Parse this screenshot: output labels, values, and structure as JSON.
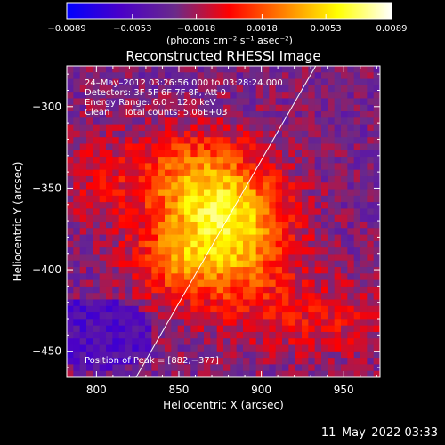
{
  "chart_data": {
    "type": "heatmap",
    "title": "Reconstructed RHESSI Image",
    "xlabel": "Heliocentric X (arcsec)",
    "ylabel": "Heliocentric Y (arcsec)",
    "xlim": [
      782,
      972
    ],
    "ylim": [
      -466,
      -275
    ],
    "x_ticks": [
      {
        "value": 800,
        "label": "800"
      },
      {
        "value": 850,
        "label": "850"
      },
      {
        "value": 900,
        "label": "900"
      },
      {
        "value": 950,
        "label": "950"
      }
    ],
    "y_ticks": [
      {
        "value": -300,
        "label": "−300"
      },
      {
        "value": -350,
        "label": "−350"
      },
      {
        "value": -400,
        "label": "−400"
      },
      {
        "value": -450,
        "label": "−450"
      }
    ],
    "colorbar": {
      "min": -0.0089,
      "max": 0.0089,
      "ticks": [
        {
          "value": -0.0089,
          "label": "−0.0089"
        },
        {
          "value": -0.0053,
          "label": "−0.0053"
        },
        {
          "value": -0.0018,
          "label": "−0.0018"
        },
        {
          "value": 0.0018,
          "label": "0.0018"
        },
        {
          "value": 0.0053,
          "label": "0.0053"
        },
        {
          "value": 0.0089,
          "label": "0.0089"
        }
      ],
      "units": "(photons cm⁻² s⁻¹ asec⁻²)",
      "colors": [
        "#0000ff",
        "#4a00c8",
        "#6a2a8a",
        "#ff0000",
        "#ff8000",
        "#ffff00",
        "#ffffff"
      ]
    },
    "annotations": [
      "24–May–2012 03:26:56.000 to 03:28:24.000",
      "Detectors: 3F 5F 6F 7F 8F, Att 0",
      "Energy Range: 6.0 – 12.0 keV",
      "Clean     Total counts: 5.06E+03"
    ],
    "peak": {
      "x": 882,
      "y": -377,
      "label": "Position of Peak = [882,−377]"
    },
    "limb_line": [
      [
        824,
        -466
      ],
      [
        933,
        -275
      ]
    ]
  },
  "footer": {
    "timestamp": "11–May–2022 03:33"
  }
}
